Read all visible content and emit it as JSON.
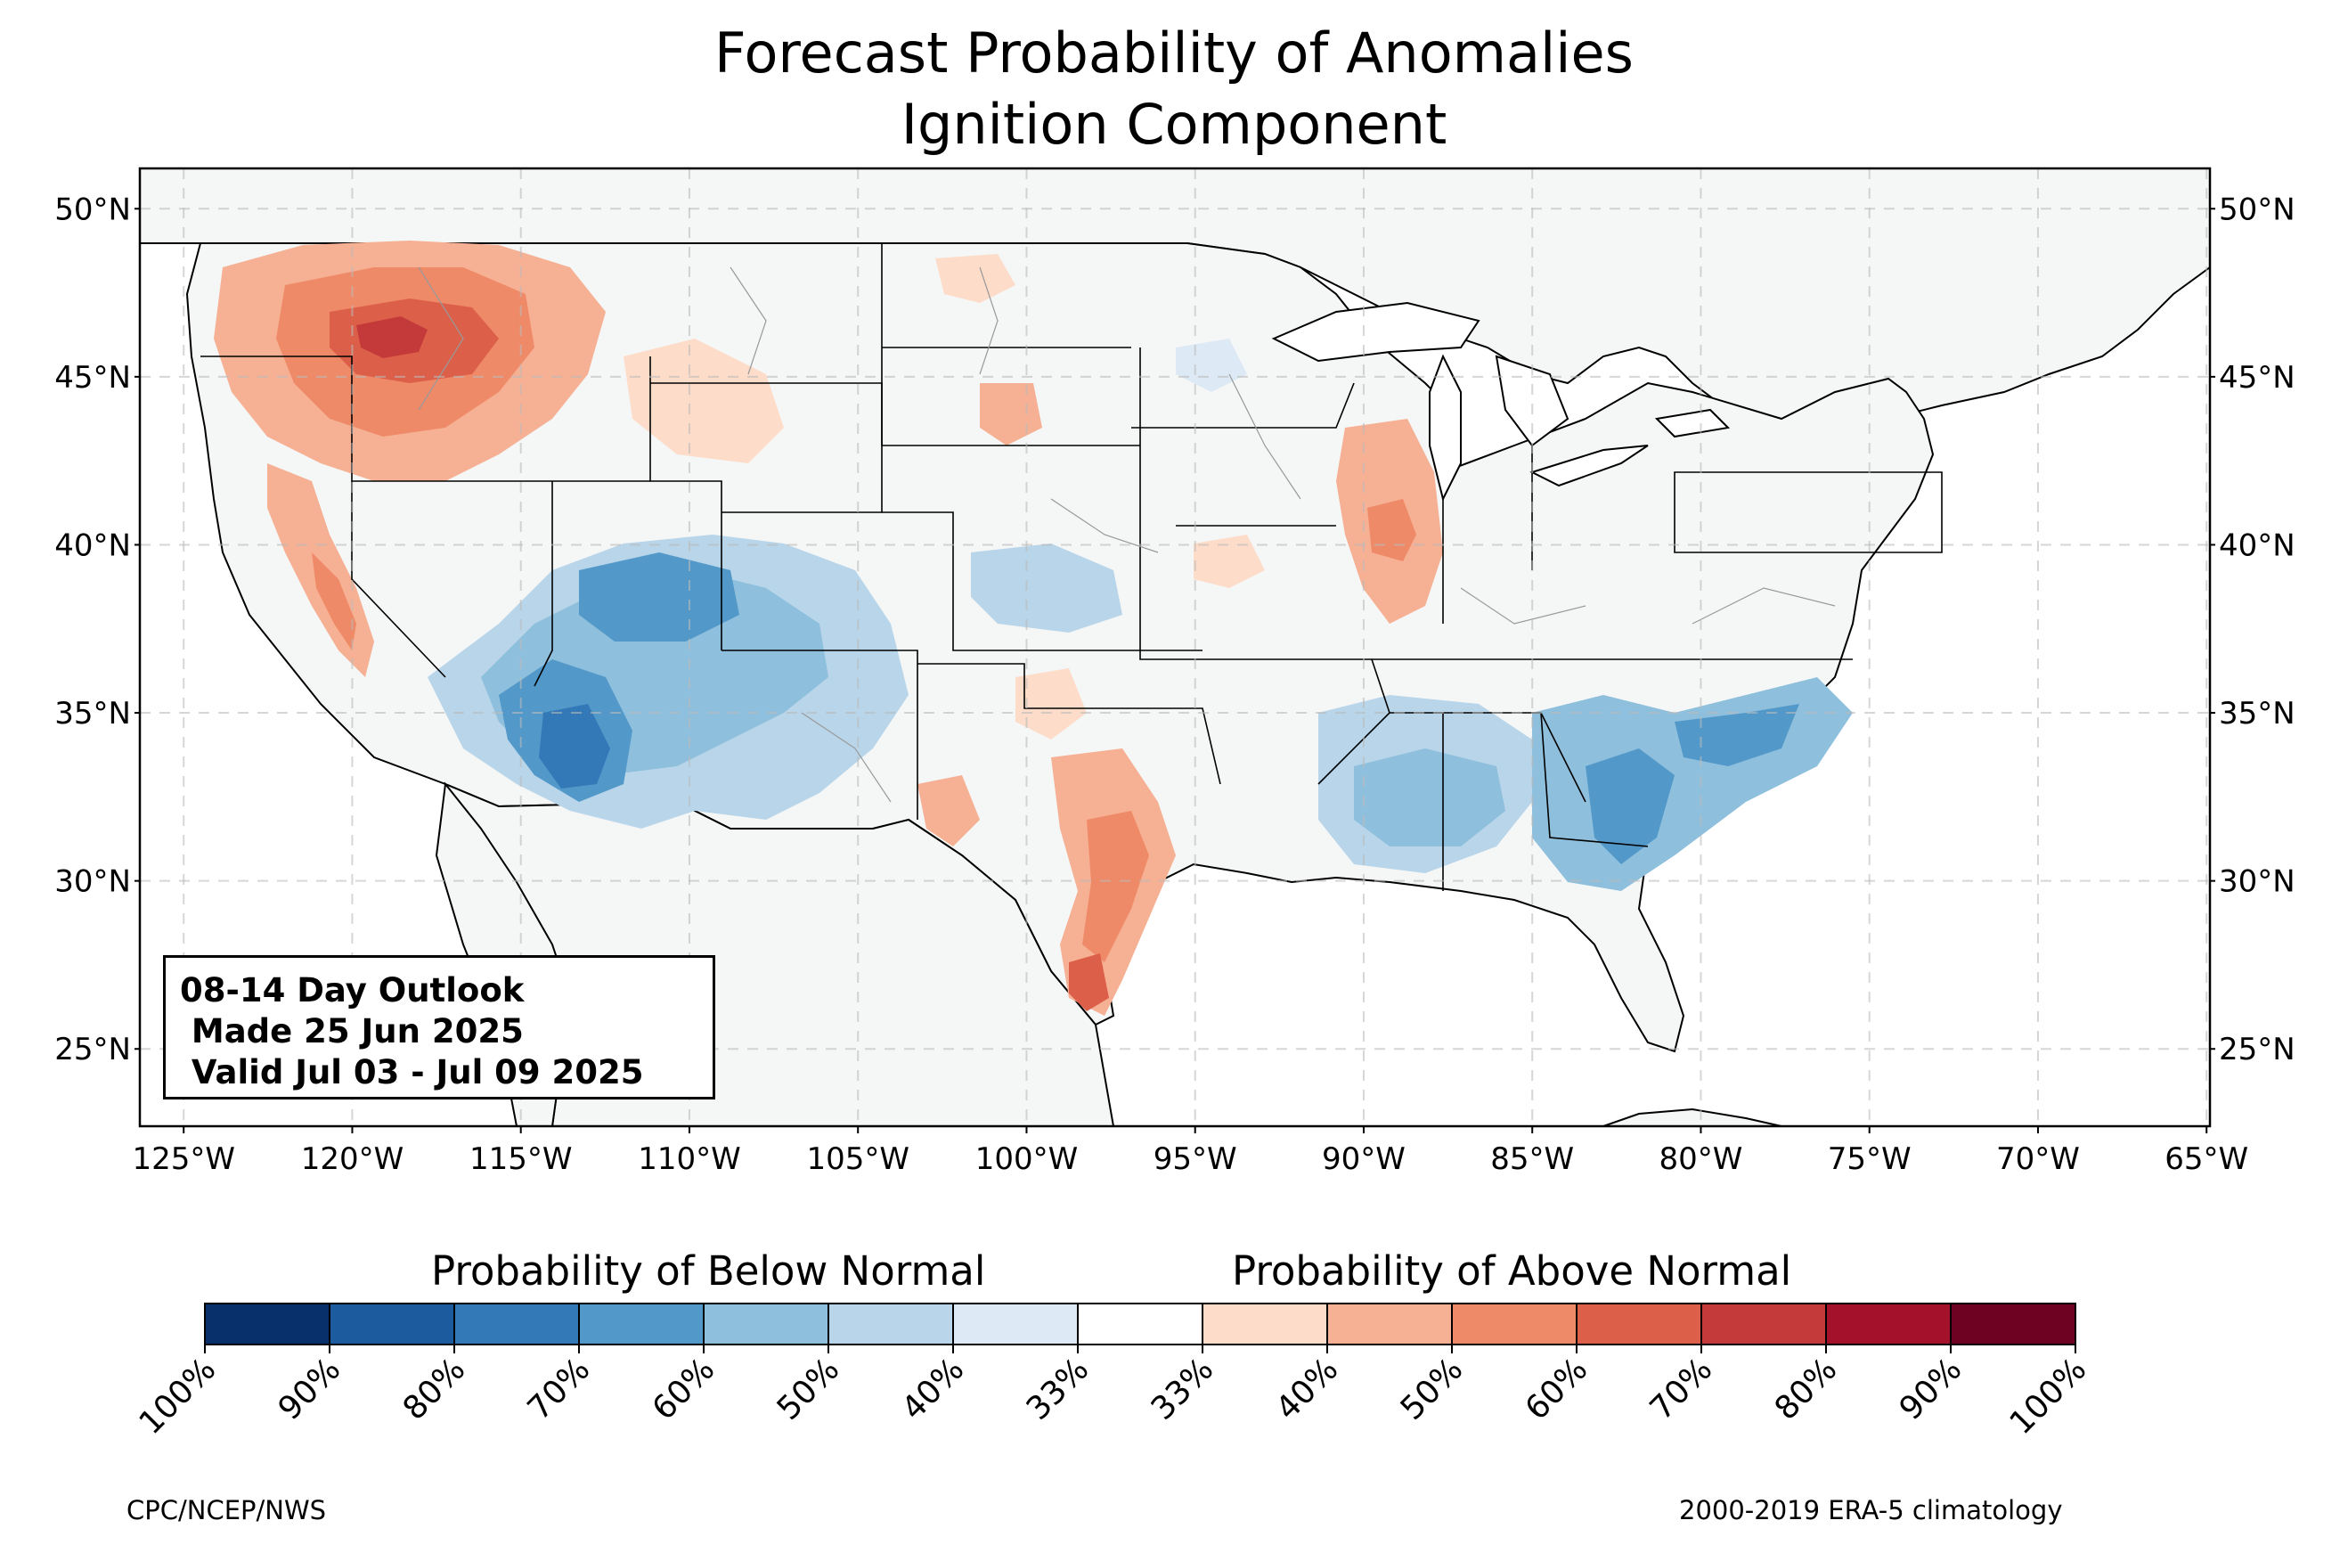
{
  "title_line1": "Forecast Probability of Anomalies",
  "title_line2": "Ignition Component",
  "map": {
    "lon_range": [
      -126.3,
      -64.9
    ],
    "lat_range": [
      22.7,
      51.2
    ],
    "lat_ticks": [
      "50°N",
      "45°N",
      "40°N",
      "35°N",
      "30°N",
      "25°N"
    ],
    "lat_values": [
      50,
      45,
      40,
      35,
      30,
      25
    ],
    "lon_ticks": [
      "125°W",
      "120°W",
      "115°W",
      "110°W",
      "105°W",
      "100°W",
      "95°W",
      "90°W",
      "85°W",
      "80°W",
      "75°W",
      "70°W",
      "65°W"
    ],
    "lon_values": [
      -125,
      -120,
      -115,
      -110,
      -105,
      -100,
      -95,
      -90,
      -85,
      -80,
      -75,
      -70,
      -65
    ],
    "gridlines": true,
    "land_color": "#f5f6f6",
    "regions_above_normal": [
      {
        "name": "Northern Rockies / Idaho-Montana",
        "peak_category": "70%"
      },
      {
        "name": "Northern California / Sierra",
        "peak_category": "60%"
      },
      {
        "name": "South Texas",
        "peak_category": "70%"
      },
      {
        "name": "Illinois",
        "peak_category": "60%"
      }
    ],
    "regions_below_normal": [
      {
        "name": "Arizona / Southwest",
        "peak_category": "80%"
      },
      {
        "name": "Colorado Plateau",
        "peak_category": "70%"
      },
      {
        "name": "Gulf Coast / Mississippi-Alabama",
        "peak_category": "60%"
      },
      {
        "name": "Georgia / Carolinas",
        "peak_category": "70%"
      }
    ]
  },
  "outlook": {
    "line1": "08-14 Day Outlook",
    "line2": " Made 25 Jun 2025",
    "line3": " Valid Jul 03 - Jul 09 2025"
  },
  "colorbar": {
    "below_label": "Probability of Below Normal",
    "above_label": "Probability of Above Normal",
    "tick_labels": [
      "100%",
      "90%",
      "80%",
      "70%",
      "60%",
      "50%",
      "40%",
      "33%",
      "33%",
      "40%",
      "50%",
      "60%",
      "70%",
      "80%",
      "90%",
      "100%"
    ],
    "colors": [
      "#08306b",
      "#1c5b9d",
      "#3379b8",
      "#5298c9",
      "#8ebfdc",
      "#b8d5ea",
      "#dde9f4",
      "#ffffff",
      "#fddcc9",
      "#f6b093",
      "#ef8a68",
      "#dc6049",
      "#c43a3a",
      "#a3122a",
      "#6d0223"
    ]
  },
  "credits": {
    "left": "CPC/NCEP/NWS",
    "right": "2000-2019 ERA-5 climatology"
  }
}
